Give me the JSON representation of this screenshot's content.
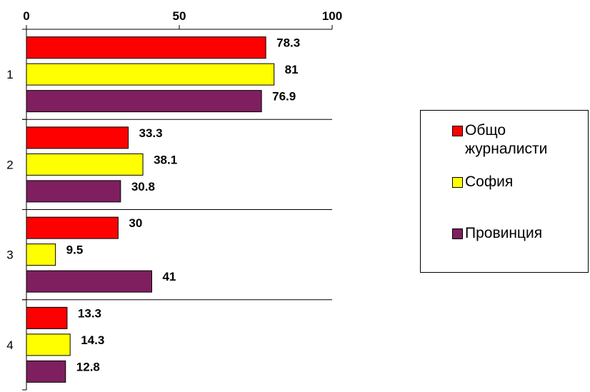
{
  "chart_data": {
    "type": "bar",
    "orientation": "horizontal",
    "categories": [
      "1",
      "2",
      "3",
      "4"
    ],
    "series": [
      {
        "name": "Общо журналисти",
        "color": "#ff0000",
        "values": [
          78.3,
          33.3,
          30,
          13.3
        ]
      },
      {
        "name": "София",
        "color": "#ffff00",
        "values": [
          81,
          38.1,
          9.5,
          14.3
        ]
      },
      {
        "name": "Провинция",
        "color": "#7f1f5f",
        "values": [
          76.9,
          30.8,
          41,
          12.8
        ]
      }
    ],
    "data_labels": [
      [
        "78.3",
        "81",
        "76.9"
      ],
      [
        "33.3",
        "38.1",
        "30.8"
      ],
      [
        "30",
        "9.5",
        "41"
      ],
      [
        "13.3",
        "14.3",
        "12.8"
      ]
    ],
    "xlim": [
      0,
      100
    ],
    "x_ticks": [
      "0",
      "50",
      "100"
    ],
    "x_axis_position": "top",
    "grid": "category separators",
    "legend_position": "right",
    "title": "",
    "xlabel": "",
    "ylabel": ""
  }
}
